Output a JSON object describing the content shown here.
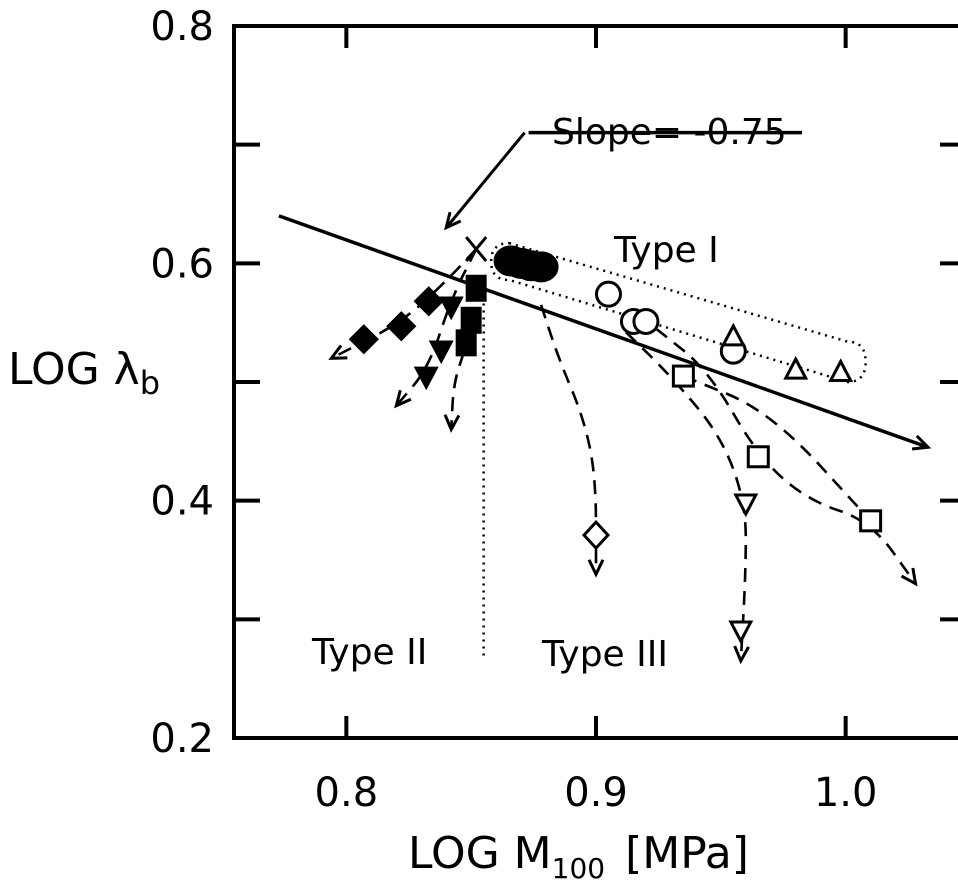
{
  "chart_data": {
    "type": "scatter",
    "xlabel": "LOG M",
    "xlabel_sub": "100",
    "xlabel_unit": "[MPa]",
    "ylabel": "LOG λ",
    "ylabel_sub": "b",
    "xlim": [
      0.755,
      1.045
    ],
    "ylim": [
      0.2,
      0.8
    ],
    "xticks": [
      0.8,
      0.9,
      1.0
    ],
    "xtick_labels": [
      "0.8",
      "0.9",
      "1.0"
    ],
    "yticks": [
      0.2,
      0.4,
      0.6,
      0.8
    ],
    "ytick_labels": [
      "0.2",
      "0.4",
      "0.6",
      "0.8"
    ],
    "annotations": {
      "slope": "Slope= -0.75",
      "type1": "Type I",
      "type2": "Type II",
      "type3": "Type III"
    },
    "slope_line": {
      "x": [
        0.773,
        1.033
      ],
      "y": [
        0.64,
        0.445
      ]
    },
    "slope_callout": {
      "label_x": 0.873,
      "label_y": 0.684,
      "tip_x": 0.84,
      "tip_y": 0.63
    },
    "cross_point": {
      "x": 0.852,
      "y": 0.612
    },
    "type2_divider_x": 0.855,
    "series": [
      {
        "marker": "filled-circle",
        "points": [
          [
            0.866,
            0.602
          ],
          [
            0.87,
            0.6
          ],
          [
            0.874,
            0.598
          ],
          [
            0.878,
            0.597
          ]
        ]
      },
      {
        "marker": "open-circle",
        "points": [
          [
            0.905,
            0.574
          ],
          [
            0.915,
            0.551
          ],
          [
            0.92,
            0.551
          ],
          [
            0.955,
            0.526
          ]
        ]
      },
      {
        "marker": "open-triangle-up",
        "points": [
          [
            0.955,
            0.538
          ],
          [
            0.98,
            0.51
          ],
          [
            0.998,
            0.508
          ]
        ]
      },
      {
        "marker": "open-square",
        "points": [
          [
            0.935,
            0.505
          ],
          [
            0.965,
            0.437
          ],
          [
            1.01,
            0.383
          ]
        ]
      },
      {
        "marker": "open-triangle-down",
        "points": [
          [
            0.96,
            0.398
          ],
          [
            0.958,
            0.291
          ]
        ]
      },
      {
        "marker": "open-diamond",
        "points": [
          [
            0.9,
            0.371
          ]
        ]
      },
      {
        "marker": "filled-diamond",
        "points": [
          [
            0.807,
            0.536
          ],
          [
            0.822,
            0.547
          ],
          [
            0.833,
            0.568
          ]
        ]
      },
      {
        "marker": "filled-triangle-down",
        "points": [
          [
            0.842,
            0.564
          ],
          [
            0.838,
            0.527
          ],
          [
            0.832,
            0.505
          ]
        ]
      },
      {
        "marker": "filled-square",
        "points": [
          [
            0.852,
            0.579
          ],
          [
            0.85,
            0.552
          ],
          [
            0.848,
            0.533
          ]
        ]
      }
    ],
    "type1_region": {
      "x": [
        0.858,
        1.008
      ],
      "y_left": [
        0.617,
        0.586
      ],
      "y_right": [
        0.534,
        0.5
      ]
    },
    "dashed_curves": [
      {
        "points": [
          [
            0.852,
            0.612
          ],
          [
            0.84,
            0.585
          ],
          [
            0.822,
            0.55
          ],
          [
            0.794,
            0.52
          ]
        ],
        "arrow": true
      },
      {
        "points": [
          [
            0.852,
            0.612
          ],
          [
            0.842,
            0.57
          ],
          [
            0.833,
            0.512
          ],
          [
            0.82,
            0.48
          ]
        ],
        "arrow": true
      },
      {
        "points": [
          [
            0.852,
            0.582
          ],
          [
            0.848,
            0.53
          ],
          [
            0.843,
            0.5
          ],
          [
            0.842,
            0.46
          ]
        ],
        "arrow": true
      },
      {
        "points": [
          [
            0.878,
            0.565
          ],
          [
            0.885,
            0.52
          ],
          [
            0.895,
            0.47
          ],
          [
            0.9,
            0.42
          ],
          [
            0.9,
            0.338
          ]
        ],
        "arrow": true
      },
      {
        "points": [
          [
            0.912,
            0.542
          ],
          [
            0.93,
            0.505
          ],
          [
            0.95,
            0.455
          ],
          [
            0.96,
            0.398
          ],
          [
            0.96,
            0.34
          ],
          [
            0.958,
            0.265
          ]
        ],
        "arrow": true
      },
      {
        "points": [
          [
            0.924,
            0.545
          ],
          [
            0.945,
            0.51
          ],
          [
            0.965,
            0.437
          ],
          [
            0.985,
            0.4
          ],
          [
            1.01,
            0.383
          ],
          [
            1.028,
            0.33
          ]
        ],
        "arrow": true
      },
      {
        "points": [
          [
            0.935,
            0.505
          ],
          [
            0.97,
            0.475
          ],
          [
            1.01,
            0.383
          ]
        ],
        "arrow": false
      }
    ]
  }
}
